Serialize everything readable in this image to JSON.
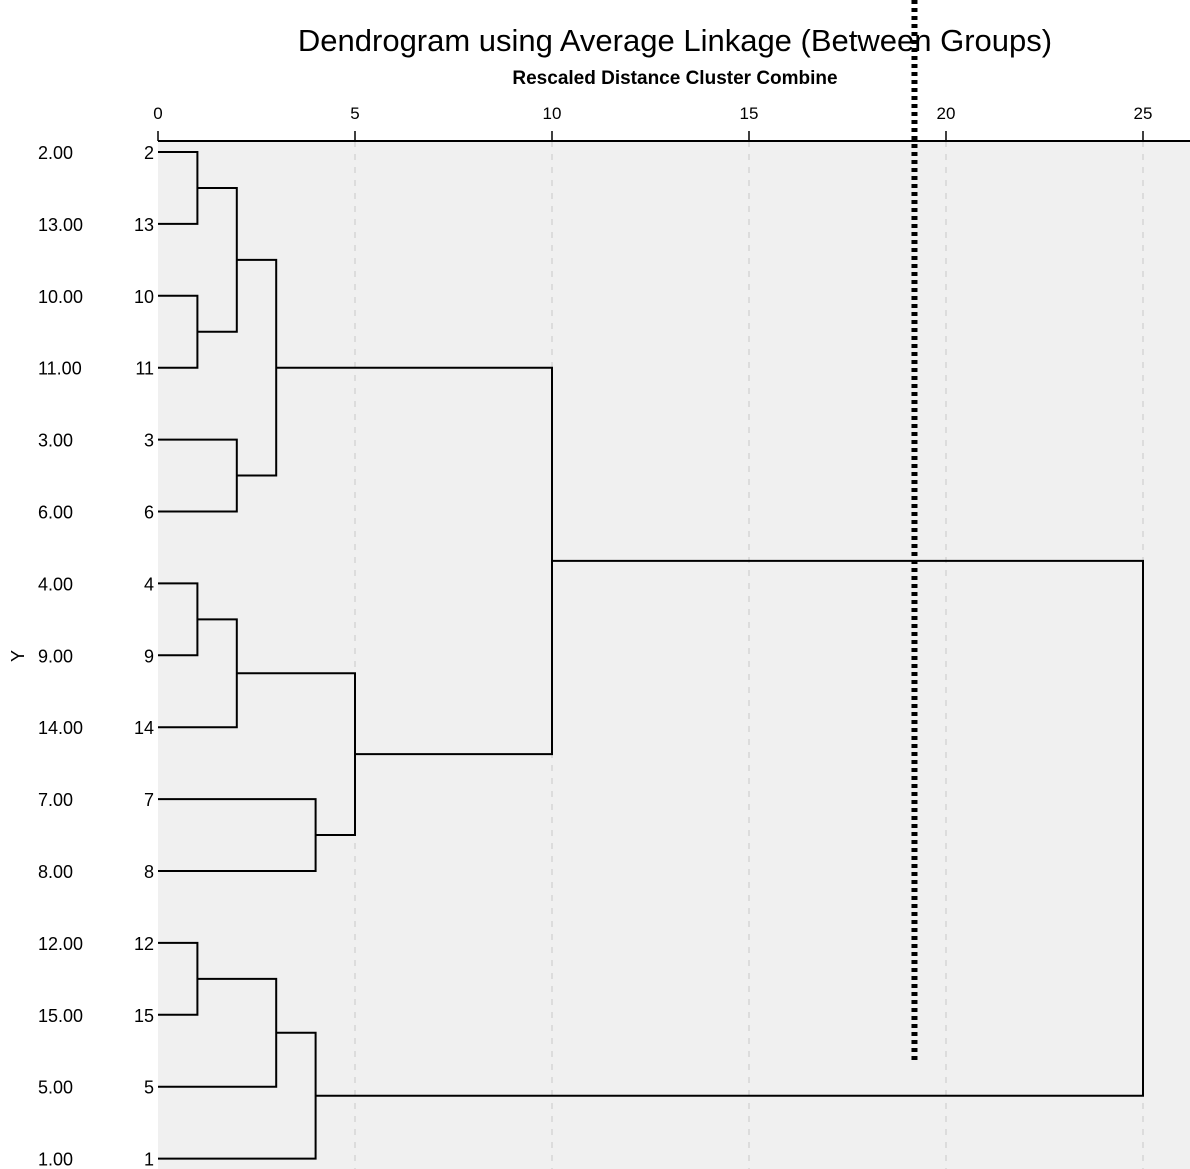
{
  "chart_data": {
    "type": "dendrogram",
    "title": "Dendrogram using Average Linkage (Between Groups)",
    "xlabel": "Rescaled Distance Cluster Combine",
    "ylabel": "Y",
    "xlim": [
      0,
      25
    ],
    "x_ticks": [
      0,
      5,
      10,
      15,
      20,
      25
    ],
    "grid": true,
    "leaf_order": [
      2,
      13,
      10,
      11,
      3,
      6,
      4,
      9,
      14,
      7,
      8,
      12,
      15,
      5,
      1
    ],
    "leaf_labels": [
      "2.00",
      "13.00",
      "10.00",
      "11.00",
      "3.00",
      "6.00",
      "4.00",
      "9.00",
      "14.00",
      "7.00",
      "8.00",
      "12.00",
      "15.00",
      "5.00",
      "1.00"
    ],
    "leaf_case_numbers": [
      "2",
      "13",
      "10",
      "11",
      "3",
      "6",
      "4",
      "9",
      "14",
      "7",
      "8",
      "12",
      "15",
      "5",
      "1"
    ],
    "merges": [
      {
        "a": 0,
        "b": 1,
        "distance": 1
      },
      {
        "a": 2,
        "b": 3,
        "distance": 1
      },
      {
        "a": 15,
        "b": 16,
        "distance": 2
      },
      {
        "a": 4,
        "b": 5,
        "distance": 2
      },
      {
        "a": 17,
        "b": 18,
        "distance": 3
      },
      {
        "a": 6,
        "b": 7,
        "distance": 1
      },
      {
        "a": 20,
        "b": 8,
        "distance": 2
      },
      {
        "a": 9,
        "b": 10,
        "distance": 4
      },
      {
        "a": 21,
        "b": 22,
        "distance": 5
      },
      {
        "a": 19,
        "b": 23,
        "distance": 10
      },
      {
        "a": 11,
        "b": 12,
        "distance": 1
      },
      {
        "a": 25,
        "b": 13,
        "distance": 3
      },
      {
        "a": 26,
        "b": 14,
        "distance": 4
      },
      {
        "a": 24,
        "b": 27,
        "distance": 25
      }
    ],
    "cutoff_line": {
      "distance": 19.2,
      "style": "dotted"
    },
    "colors": {
      "background": "#f0f0f0",
      "line": "#000000",
      "grid": "#c8c8c8",
      "cutoff": "#000000"
    }
  }
}
